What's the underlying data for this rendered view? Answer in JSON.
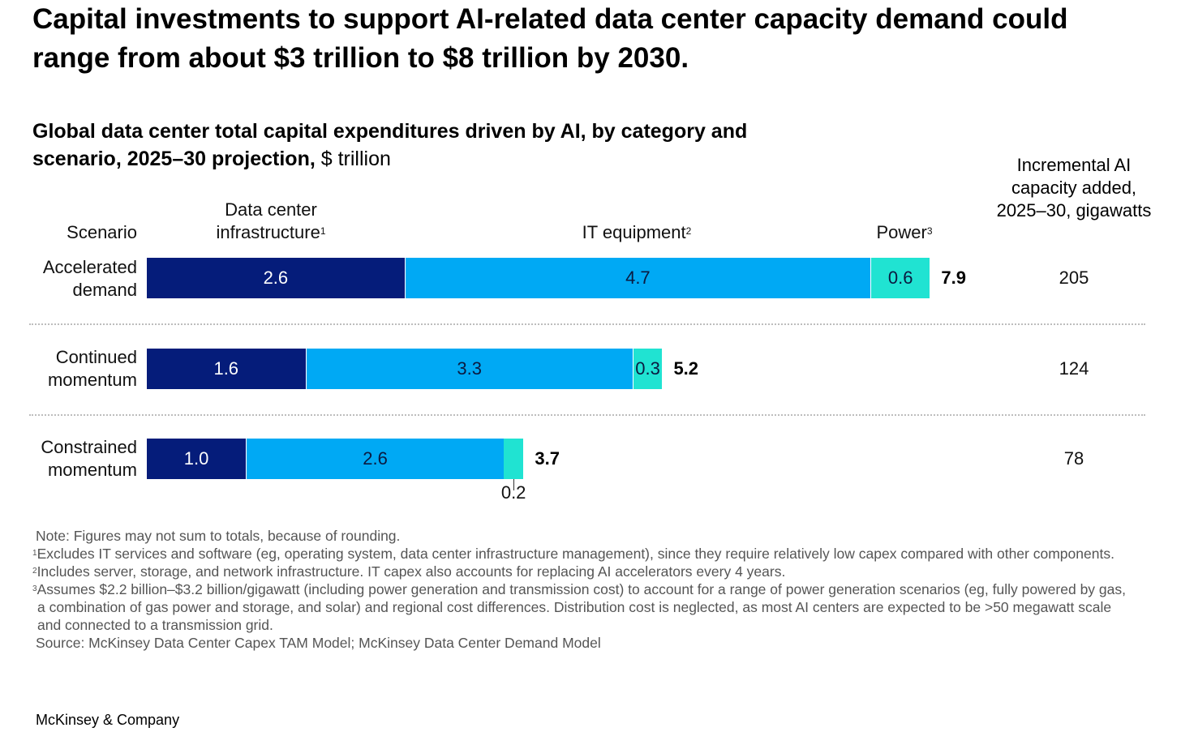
{
  "headline": "Capital investments to support AI-related data center capacity demand could range from about $3 trillion to $8 trillion by 2030.",
  "subtitle_bold": "Global data center total capital expenditures driven by AI, by category and scenario, 2025–30 projection,",
  "subtitle_unit": " $ trillion",
  "right_column_header": "Incremental AI capacity added, 2025–30, gigawatts",
  "column_headers": {
    "scenario": "Scenario",
    "infrastructure": "Data center infrastructure",
    "infrastructure_note": "1",
    "it": "IT equipment",
    "it_note": "2",
    "power": "Power",
    "power_note": "3"
  },
  "chart_data": {
    "type": "bar",
    "orientation": "horizontal",
    "stacked": true,
    "categories": [
      "Accelerated demand",
      "Continued momentum",
      "Constrained momentum"
    ],
    "series": [
      {
        "name": "Data center infrastructure",
        "color": "#051c7a",
        "values": [
          2.6,
          1.6,
          1.0
        ]
      },
      {
        "name": "IT equipment",
        "color": "#00a9f4",
        "values": [
          4.7,
          3.3,
          2.6
        ]
      },
      {
        "name": "Power",
        "color": "#20e3d2",
        "values": [
          0.6,
          0.3,
          0.2
        ]
      }
    ],
    "segment_labels": [
      [
        "2.6",
        "4.7",
        "0.6"
      ],
      [
        "1.6",
        "3.3",
        "0.3"
      ],
      [
        "1.0",
        "2.6",
        "0.2"
      ]
    ],
    "totals": [
      "7.9",
      "5.2",
      "3.7"
    ],
    "gigawatts": [
      "205",
      "124",
      "78"
    ]
  },
  "rows": [
    {
      "label_line1": "Accelerated",
      "label_line2": "demand"
    },
    {
      "label_line1": "Continued",
      "label_line2": "momentum"
    },
    {
      "label_line1": "Constrained",
      "label_line2": "momentum"
    }
  ],
  "notes": {
    "note": "Note: Figures may not sum to totals, because of rounding.",
    "fn1": "Excludes IT services and software (eg, operating system, data center infrastructure management), since they require relatively low capex compared with other components.",
    "fn2": "Includes server, storage, and network infrastructure. IT capex also accounts for replacing AI accelerators every 4 years.",
    "fn3": "Assumes $2.2 billion–$3.2 billion/gigawatt (including power generation and transmission cost) to account for a range of power generation scenarios (eg, fully powered by gas, a combination of gas power and storage, and solar) and regional cost differences. Distribution cost is neglected, as most AI centers are expected to be >50 megawatt scale and connected to a transmission grid.",
    "source": "Source: McKinsey Data Center Capex TAM Model; McKinsey Data Center Demand Model",
    "fn1_mark": "1",
    "fn2_mark": "2",
    "fn3_mark": "3"
  },
  "brand": "McKinsey & Company"
}
